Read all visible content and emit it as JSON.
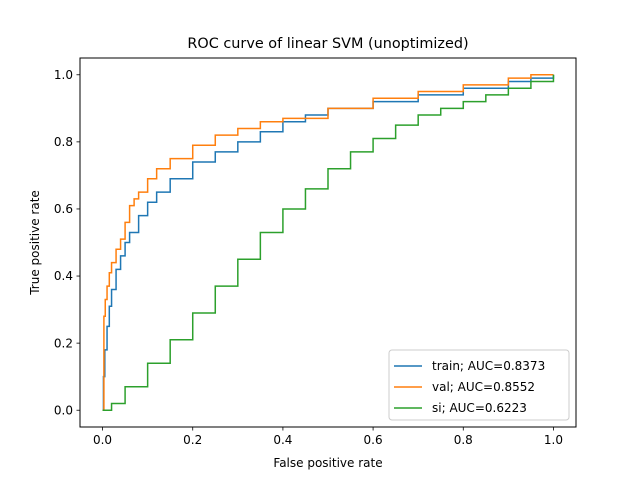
{
  "chart_data": {
    "type": "line",
    "title": "ROC curve of linear SVM (unoptimized)",
    "xlabel": "False positive rate",
    "ylabel": "True positive rate",
    "xlim": [
      -0.05,
      1.05
    ],
    "ylim": [
      -0.05,
      1.05
    ],
    "xticks": [
      "0.0",
      "0.2",
      "0.4",
      "0.6",
      "0.8",
      "1.0"
    ],
    "yticks": [
      "0.0",
      "0.2",
      "0.4",
      "0.6",
      "0.8",
      "1.0"
    ],
    "grid": false,
    "legend_position": "lower-right",
    "series": [
      {
        "name": "train; AUC=0.8373",
        "color": "#1f77b4",
        "x": [
          0,
          0.002,
          0.005,
          0.01,
          0.015,
          0.02,
          0.03,
          0.04,
          0.05,
          0.06,
          0.08,
          0.1,
          0.12,
          0.15,
          0.2,
          0.25,
          0.3,
          0.35,
          0.4,
          0.45,
          0.5,
          0.6,
          0.7,
          0.8,
          0.9,
          0.95,
          1.0
        ],
        "y": [
          0,
          0.1,
          0.18,
          0.25,
          0.31,
          0.36,
          0.42,
          0.46,
          0.5,
          0.53,
          0.58,
          0.62,
          0.65,
          0.69,
          0.74,
          0.77,
          0.8,
          0.83,
          0.86,
          0.88,
          0.9,
          0.92,
          0.94,
          0.96,
          0.98,
          0.99,
          1.0
        ]
      },
      {
        "name": "val; AUC=0.8552",
        "color": "#ff7f0e",
        "x": [
          0,
          0.003,
          0.006,
          0.01,
          0.015,
          0.02,
          0.03,
          0.04,
          0.05,
          0.06,
          0.07,
          0.08,
          0.1,
          0.12,
          0.15,
          0.2,
          0.25,
          0.3,
          0.35,
          0.4,
          0.5,
          0.6,
          0.7,
          0.8,
          0.9,
          0.95,
          1.0
        ],
        "y": [
          0,
          0.28,
          0.33,
          0.37,
          0.41,
          0.44,
          0.48,
          0.51,
          0.56,
          0.61,
          0.63,
          0.65,
          0.69,
          0.72,
          0.75,
          0.79,
          0.82,
          0.84,
          0.86,
          0.87,
          0.9,
          0.93,
          0.95,
          0.97,
          0.99,
          1.0,
          1.0
        ]
      },
      {
        "name": "si; AUC=0.6223",
        "color": "#2ca02c",
        "x": [
          0,
          0.02,
          0.05,
          0.1,
          0.15,
          0.2,
          0.25,
          0.3,
          0.35,
          0.4,
          0.45,
          0.5,
          0.55,
          0.6,
          0.65,
          0.7,
          0.75,
          0.8,
          0.85,
          0.9,
          0.95,
          1.0
        ],
        "y": [
          0,
          0.02,
          0.07,
          0.14,
          0.21,
          0.29,
          0.37,
          0.45,
          0.53,
          0.6,
          0.66,
          0.72,
          0.77,
          0.81,
          0.85,
          0.88,
          0.9,
          0.92,
          0.94,
          0.96,
          0.98,
          1.0
        ]
      }
    ]
  }
}
